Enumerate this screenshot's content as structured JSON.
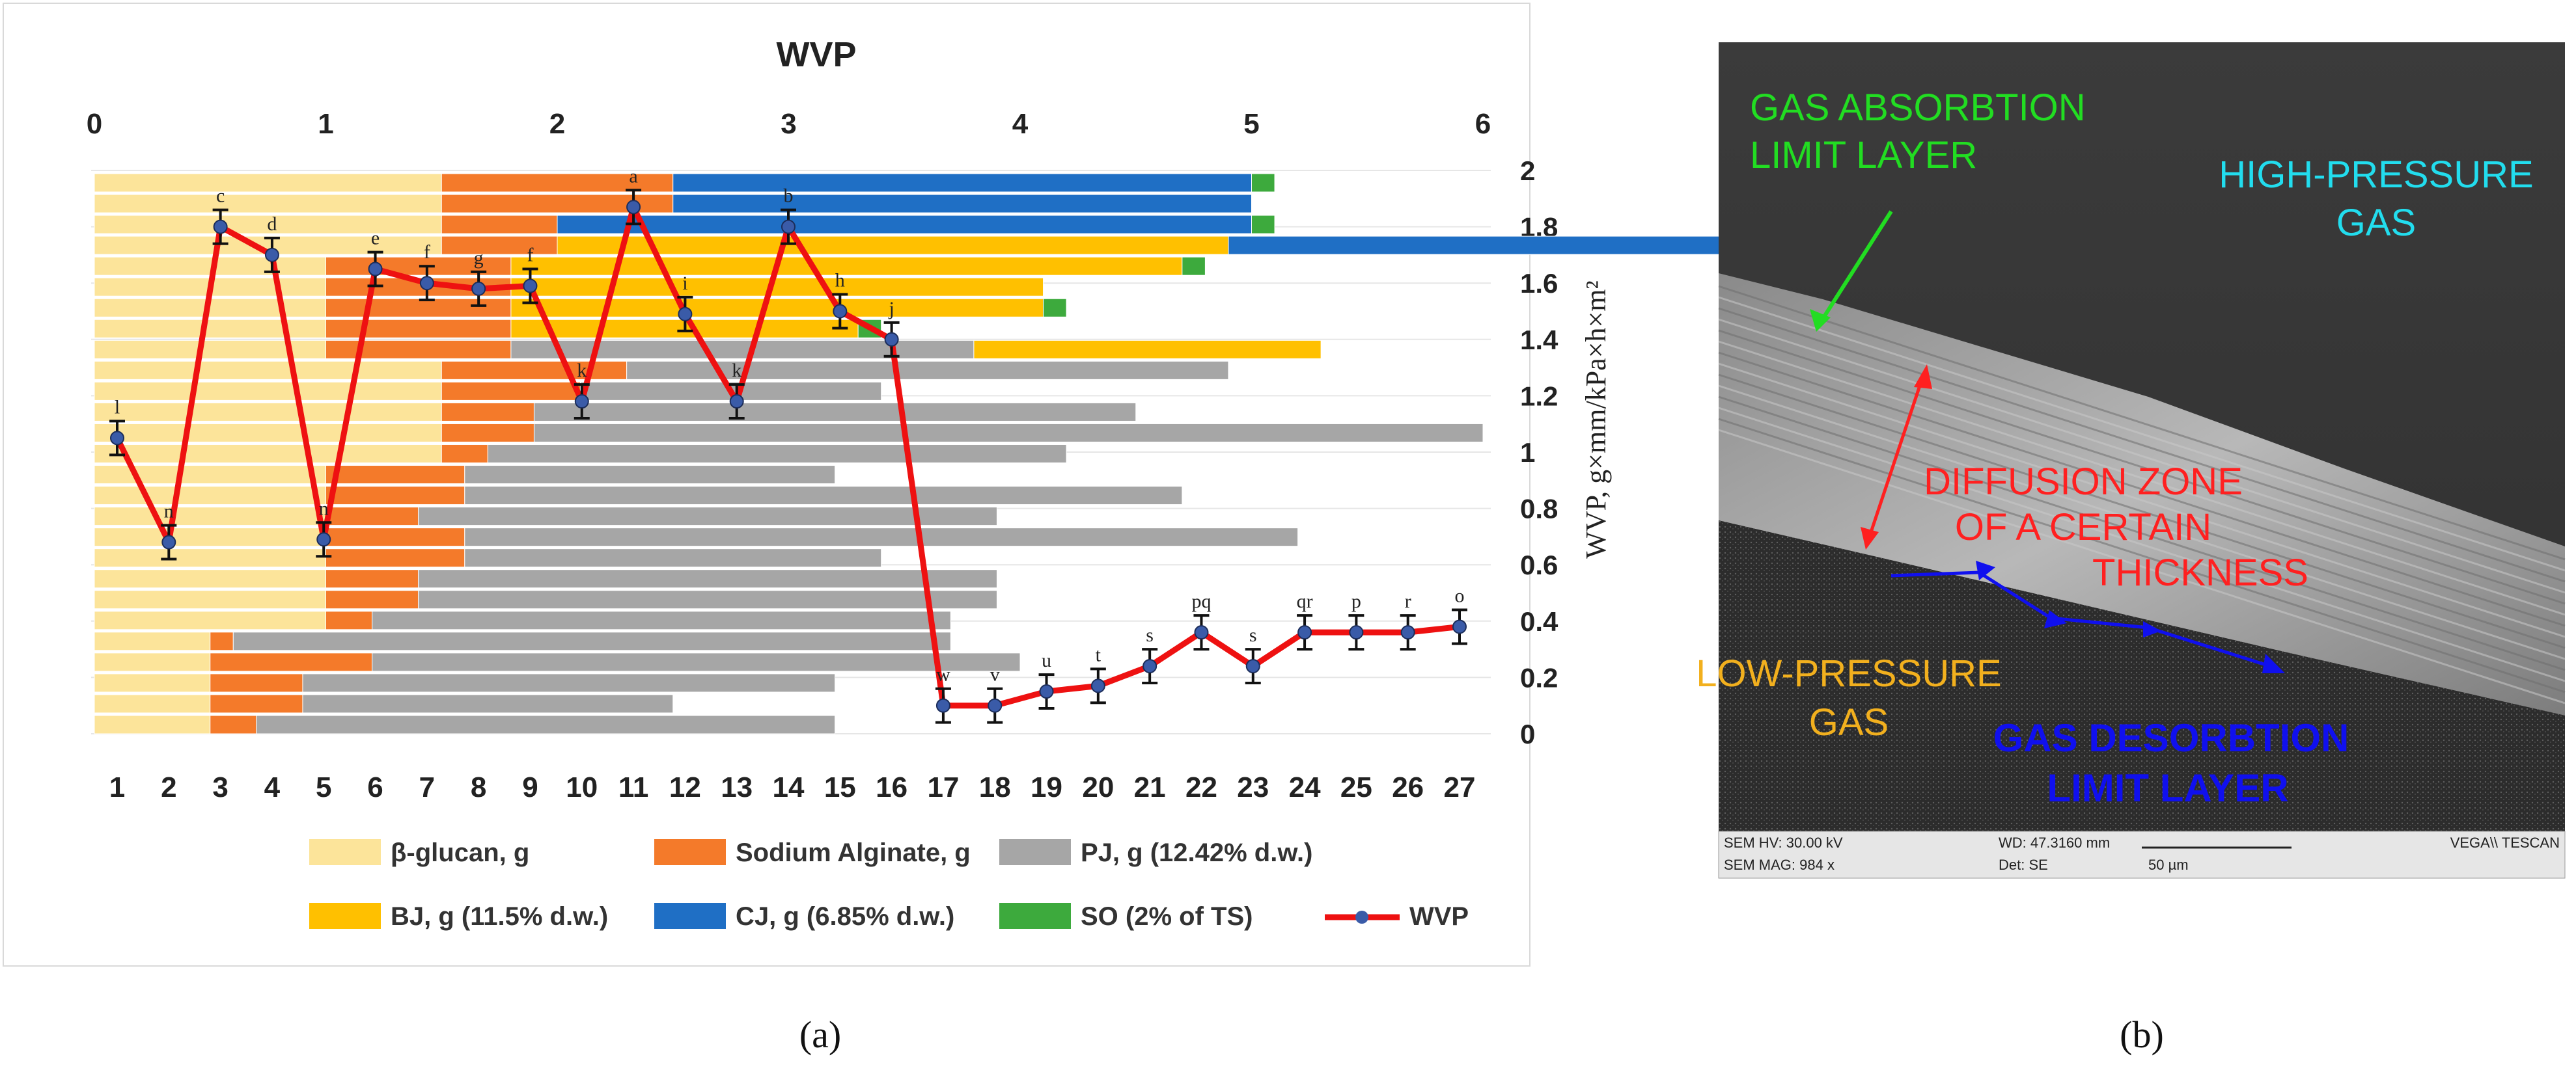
{
  "chart_data": {
    "type": "bar",
    "orientation": "horizontal",
    "title": "WVP",
    "top_axis": {
      "range": [
        0,
        6
      ],
      "ticks": [
        0,
        1,
        2,
        3,
        4,
        5,
        6
      ]
    },
    "bottom_axis": {
      "categories": [
        1,
        2,
        3,
        4,
        5,
        6,
        7,
        8,
        9,
        10,
        11,
        12,
        13,
        14,
        15,
        16,
        17,
        18,
        19,
        20,
        21,
        22,
        23,
        24,
        25,
        26,
        27
      ]
    },
    "right_axis": {
      "label": "WVP, g×mm/kPa×h×m²",
      "range": [
        0,
        2
      ],
      "ticks": [
        "0",
        "0.2",
        "0.4",
        "0.6",
        "0.8",
        "1",
        "1.2",
        "1.4",
        "1.6",
        "1.8",
        "2"
      ]
    },
    "stacked_series": [
      {
        "name": "β-glucan, g",
        "color": "#FCE49A",
        "values": [
          0.5,
          0.5,
          0.5,
          0.5,
          0.5,
          1,
          1,
          1,
          1,
          1,
          1,
          1,
          1,
          1.5,
          1.5,
          1.5,
          1.5,
          1.5,
          1,
          1,
          1,
          1,
          1,
          1.5,
          1.5,
          1.5,
          1.5
        ]
      },
      {
        "name": "Sodium Alginate, g",
        "color": "#F47A2A",
        "values": [
          0.2,
          0.4,
          0.4,
          0.7,
          0.1,
          0.2,
          0.4,
          0.4,
          0.6,
          0.6,
          0.4,
          0.6,
          0.6,
          0.2,
          0.4,
          0.4,
          0.6,
          0.8,
          0.8,
          0.8,
          0.8,
          0.8,
          0.8,
          0.5,
          0.5,
          1,
          1
        ]
      },
      {
        "name": "PJ, g (12.42% d.w.)",
        "color": "#A6A6A6",
        "values": [
          2.5,
          1.6,
          2.3,
          2.8,
          3.1,
          2.5,
          2.5,
          2.5,
          1.8,
          3.6,
          2.5,
          3.1,
          1.6,
          2.5,
          4.1,
          2.6,
          1.3,
          2.6,
          2,
          0,
          0,
          0,
          0,
          0,
          0,
          0,
          0
        ]
      },
      {
        "name": "BJ, g (11.5% d.w.)",
        "color": "#FFC000",
        "values": [
          0,
          0,
          0,
          0,
          0,
          0,
          0,
          0,
          0,
          0,
          0,
          0,
          0,
          0,
          0,
          0,
          0,
          0,
          1.5,
          1.5,
          2.3,
          2.3,
          2.9,
          2.9,
          0,
          0,
          0
        ]
      },
      {
        "name": "CJ,  g (6.85% d.w.)",
        "color": "#1F6FC5",
        "values": [
          0,
          0,
          0,
          0,
          0,
          0,
          0,
          0,
          0,
          0,
          0,
          0,
          0,
          0,
          0,
          0,
          0,
          0,
          0,
          0,
          0,
          0,
          0,
          3,
          3,
          2.5,
          2.5
        ]
      },
      {
        "name": "SO (2% of TS)",
        "color": "#3DAA3D",
        "values": [
          0,
          0,
          0,
          0,
          0,
          0,
          0,
          0,
          0,
          0,
          0,
          0,
          0,
          0,
          0,
          0,
          0,
          0,
          0,
          0.1,
          0.1,
          0,
          0.1,
          0,
          0.1,
          0,
          0.1
        ]
      }
    ],
    "line_series": {
      "name": "WVP",
      "color": "#EE1111",
      "values": [
        1.05,
        0.68,
        1.8,
        1.7,
        0.69,
        1.65,
        1.6,
        1.58,
        1.59,
        1.18,
        1.87,
        1.49,
        1.18,
        1.8,
        1.5,
        1.4,
        0.1,
        0.1,
        0.15,
        0.17,
        0.24,
        0.36,
        0.24,
        0.36,
        0.36,
        0.36,
        0.38
      ],
      "letters": [
        "l",
        "n",
        "c",
        "d",
        "n",
        "e",
        "f",
        "g",
        "f",
        "k",
        "a",
        "i",
        "k",
        "b",
        "h",
        "j",
        "w",
        "v",
        "u",
        "t",
        "s",
        "pq",
        "s",
        "qr",
        "p",
        "r",
        "o"
      ],
      "error": 0.06
    },
    "legend_position": "bottom"
  },
  "sem_image": {
    "labels": [
      {
        "text": "GAS ABSORBTION",
        "color": "#22DD22"
      },
      {
        "text": "LIMIT LAYER",
        "color": "#22DD22"
      },
      {
        "text": "HIGH-PRESSURE",
        "color": "#22DDEE"
      },
      {
        "text": "GAS",
        "color": "#22DDEE"
      },
      {
        "text": "DIFFUSION ZONE",
        "color": "#FF2020"
      },
      {
        "text": "OF A CERTAIN",
        "color": "#FF2020"
      },
      {
        "text": "THICKNESS",
        "color": "#FF2020"
      },
      {
        "text": "LOW-PRESSURE",
        "color": "#F2B01E"
      },
      {
        "text": "GAS",
        "color": "#F2B01E"
      },
      {
        "text": "GAS DESORBTION",
        "color": "#1010EE"
      },
      {
        "text": "LIMIT LAYER",
        "color": "#1010EE"
      }
    ],
    "info_bar": {
      "hv": "SEM HV: 30.00 kV",
      "mag": "SEM MAG: 984 x",
      "wd": "WD: 47.3160 mm",
      "det": "Det: SE",
      "scale": "50 µm",
      "brand": "VEGA\\\\ TESCAN"
    }
  },
  "panel_labels": {
    "a": "(a)",
    "b": "(b)"
  }
}
